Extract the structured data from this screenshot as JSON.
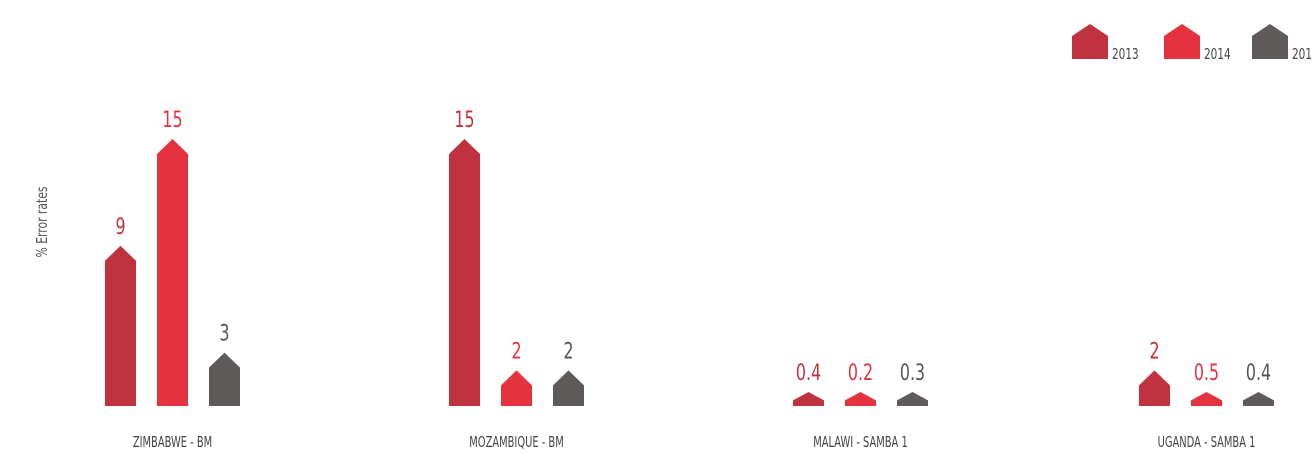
{
  "chart_data": {
    "type": "bar",
    "title": "",
    "xlabel": "",
    "ylabel": "% Error rates",
    "categories": [
      "ZIMBABWE - BM",
      "MOZAMBIQUE - BM",
      "MALAWI - SAMBA 1",
      "UGANDA - SAMBA 1"
    ],
    "series": [
      {
        "name": "2013",
        "values": [
          9,
          15,
          0.4,
          2
        ]
      },
      {
        "name": "2014",
        "values": [
          15,
          2,
          0.2,
          0.5
        ]
      },
      {
        "name": "201",
        "values": [
          3,
          2,
          0.3,
          0.4
        ]
      }
    ],
    "value_labels": [
      [
        "9",
        "15",
        "0.4",
        "2"
      ],
      [
        "15",
        "2",
        "0.2",
        "0.5"
      ],
      [
        "3",
        "2",
        "0.3",
        "0.4"
      ]
    ],
    "ylim": [
      0,
      15
    ],
    "grid": false,
    "legend_position": "top-right",
    "colors": [
      "#c1323f",
      "#e5323f",
      "#605b5b"
    ]
  }
}
